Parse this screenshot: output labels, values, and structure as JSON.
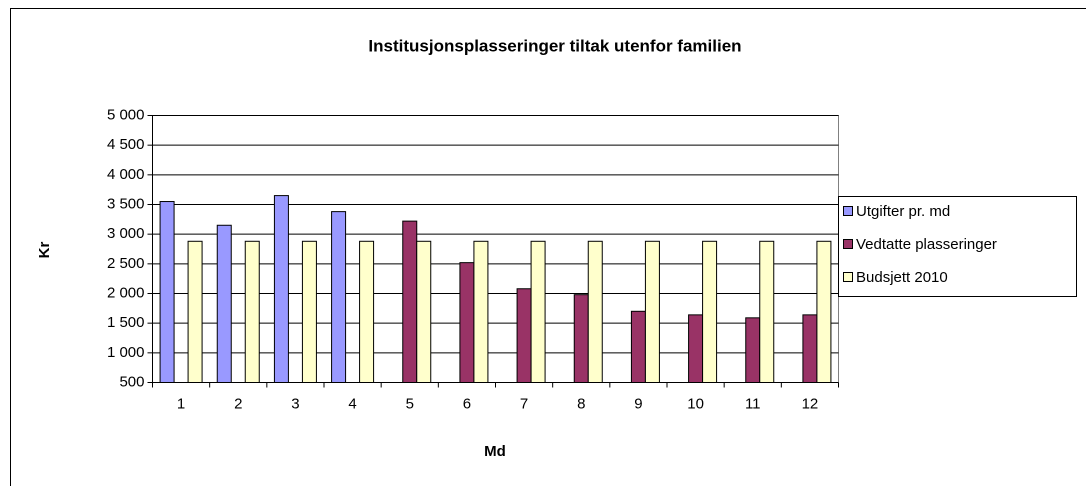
{
  "chart_data": {
    "type": "bar",
    "title": "Institusjonsplasseringer tiltak utenfor familien",
    "x_label": "Md",
    "y_label": "Kr",
    "categories": [
      "1",
      "2",
      "3",
      "4",
      "5",
      "6",
      "7",
      "8",
      "9",
      "10",
      "11",
      "12"
    ],
    "series": [
      {
        "name": "Utgifter pr. md",
        "color": "#9999ff",
        "values": [
          3550,
          3150,
          3650,
          3380,
          null,
          null,
          null,
          null,
          null,
          null,
          null,
          null
        ]
      },
      {
        "name": "Vedtatte plasseringer",
        "color": "#993366",
        "values": [
          null,
          null,
          null,
          null,
          3220,
          2520,
          2080,
          1980,
          1700,
          1640,
          1590,
          1640
        ]
      },
      {
        "name": "Budsjett 2010",
        "color": "#ffffcc",
        "values": [
          2880,
          2880,
          2880,
          2880,
          2880,
          2880,
          2880,
          2880,
          2880,
          2880,
          2880,
          2880
        ]
      }
    ],
    "ylim": [
      500,
      5000
    ],
    "yticks": [
      500,
      {
        "value": 1000,
        "label": "1 000"
      },
      {
        "value": 1500,
        "label": "1 500"
      },
      {
        "value": 2000,
        "label": "2 000"
      },
      {
        "value": 2500,
        "label": "2 500"
      },
      {
        "value": 3000,
        "label": "3 000"
      },
      {
        "value": 3500,
        "label": "3 500"
      },
      {
        "value": 4000,
        "label": "4 000"
      },
      {
        "value": 4500,
        "label": "4 500"
      },
      {
        "value": 5000,
        "label": "5 000"
      }
    ],
    "grid": true,
    "legend": "right"
  }
}
